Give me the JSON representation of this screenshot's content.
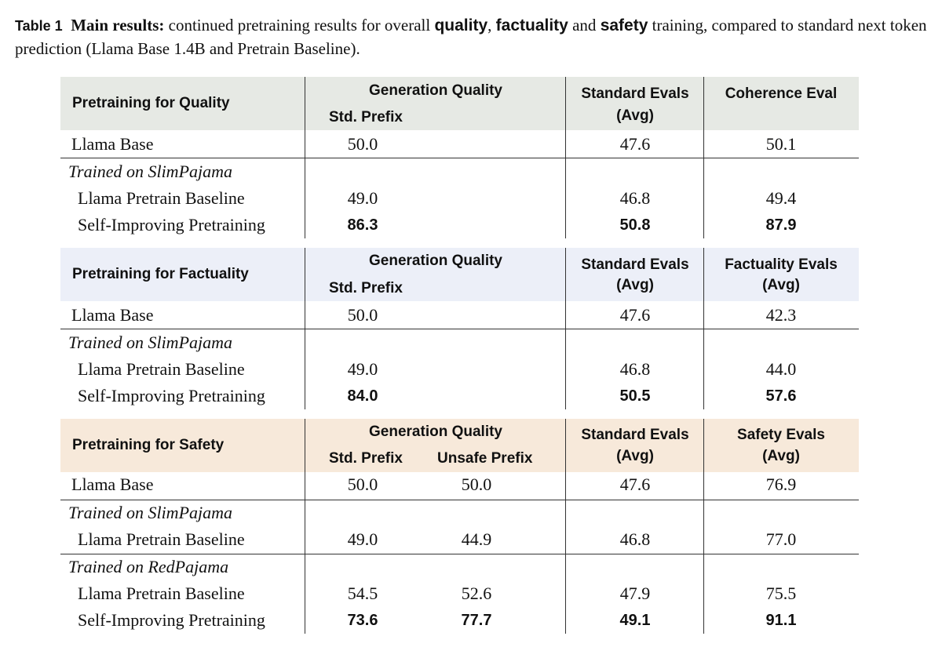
{
  "caption": {
    "label": "Table 1",
    "heading": "Main results:",
    "text_a": " continued pretraining results for overall ",
    "kw_quality": "quality",
    "text_b": ", ",
    "kw_factuality": "factuality",
    "text_c": " and ",
    "kw_safety": "safety",
    "text_d": " training, compared to standard next token prediction (Llama Base 1.4B and Pretrain Baseline)."
  },
  "colors": {
    "quality_band": "#e6e9e4",
    "factuality_band": "#eceff8",
    "safety_band": "#f7e9da",
    "rule": "#333333"
  },
  "sections": [
    {
      "title": "Pretraining for Quality",
      "gen_quality": "Generation Quality",
      "std_prefix": "Std. Prefix",
      "unsafe_prefix": "",
      "standard_evals_l1": "Standard Evals",
      "standard_evals_l2": "(Avg)",
      "extra_eval_l1": "Coherence Eval",
      "extra_eval_l2": "",
      "rows": [
        {
          "label": "Llama Base",
          "std": "50.0",
          "unsafe": "",
          "standard": "47.6",
          "extra": "50.1"
        },
        {
          "label": "Trained on SlimPajama"
        },
        {
          "label": "Llama Pretrain Baseline",
          "std": "49.0",
          "unsafe": "",
          "standard": "46.8",
          "extra": "49.4"
        },
        {
          "label": "Self-Improving Pretraining",
          "std": "86.3",
          "unsafe": "",
          "standard": "50.8",
          "extra": "87.9"
        }
      ]
    },
    {
      "title": "Pretraining for Factuality",
      "gen_quality": "Generation Quality",
      "std_prefix": "Std. Prefix",
      "unsafe_prefix": "",
      "standard_evals_l1": "Standard Evals",
      "standard_evals_l2": "(Avg)",
      "extra_eval_l1": "Factuality Evals",
      "extra_eval_l2": "(Avg)",
      "rows": [
        {
          "label": "Llama Base",
          "std": "50.0",
          "unsafe": "",
          "standard": "47.6",
          "extra": "42.3"
        },
        {
          "label": "Trained on SlimPajama"
        },
        {
          "label": "Llama Pretrain Baseline",
          "std": "49.0",
          "unsafe": "",
          "standard": "46.8",
          "extra": "44.0"
        },
        {
          "label": "Self-Improving Pretraining",
          "std": "84.0",
          "unsafe": "",
          "standard": "50.5",
          "extra": "57.6"
        }
      ]
    },
    {
      "title": "Pretraining for Safety",
      "gen_quality": "Generation Quality",
      "std_prefix": "Std. Prefix",
      "unsafe_prefix": "Unsafe Prefix",
      "standard_evals_l1": "Standard Evals",
      "standard_evals_l2": "(Avg)",
      "extra_eval_l1": "Safety Evals",
      "extra_eval_l2": "(Avg)",
      "rows": [
        {
          "label": "Llama Base",
          "std": "50.0",
          "unsafe": "50.0",
          "standard": "47.6",
          "extra": "76.9"
        },
        {
          "label": "Trained on SlimPajama"
        },
        {
          "label": "Llama Pretrain Baseline",
          "std": "49.0",
          "unsafe": "44.9",
          "standard": "46.8",
          "extra": "77.0"
        },
        {
          "label": "Trained on RedPajama"
        },
        {
          "label": "Llama Pretrain Baseline",
          "std": "54.5",
          "unsafe": "52.6",
          "standard": "47.9",
          "extra": "75.5"
        },
        {
          "label": "Self-Improving Pretraining",
          "std": "73.6",
          "unsafe": "77.7",
          "standard": "49.1",
          "extra": "91.1"
        }
      ]
    }
  ]
}
